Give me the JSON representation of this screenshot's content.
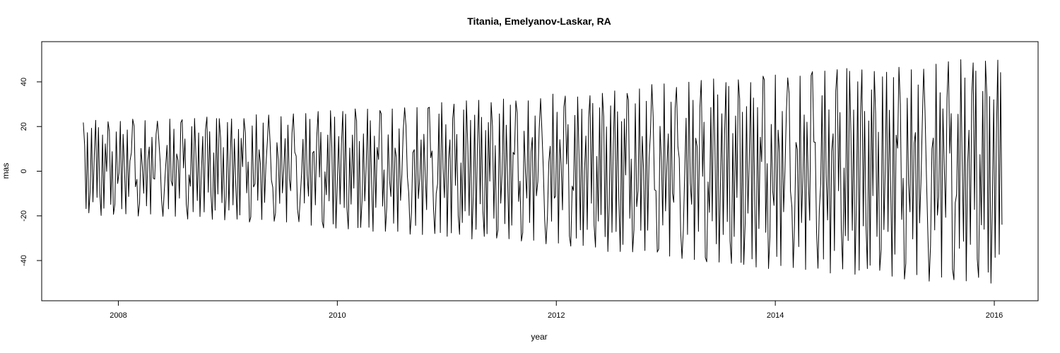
{
  "chart_data": {
    "type": "line",
    "title": "Titania, Emelyanov-Laskar, RA",
    "xlabel": "year",
    "ylabel": "mas",
    "xlim": [
      2007.3,
      2016.4
    ],
    "ylim": [
      -58,
      58
    ],
    "x_ticks": [
      2008,
      2010,
      2012,
      2014,
      2016
    ],
    "y_ticks": [
      -40,
      -20,
      0,
      20,
      40
    ],
    "grid": false,
    "legend": "none",
    "line_color": "#000000",
    "series": [
      {
        "x_start": 2007.68,
        "x_end": 2016.07,
        "samples": 670,
        "envelope_x": [
          2007.68,
          2008.5,
          2009.5,
          2010.5,
          2011.5,
          2012.5,
          2013.5,
          2014.5,
          2015.5,
          2016.07
        ],
        "envelope_max": [
          23,
          24,
          26,
          29,
          33,
          37,
          42,
          46,
          50,
          53
        ],
        "envelope_min": [
          -20,
          -21,
          -24,
          -28,
          -32,
          -37,
          -42,
          -46,
          -50,
          -52
        ]
      }
    ]
  }
}
